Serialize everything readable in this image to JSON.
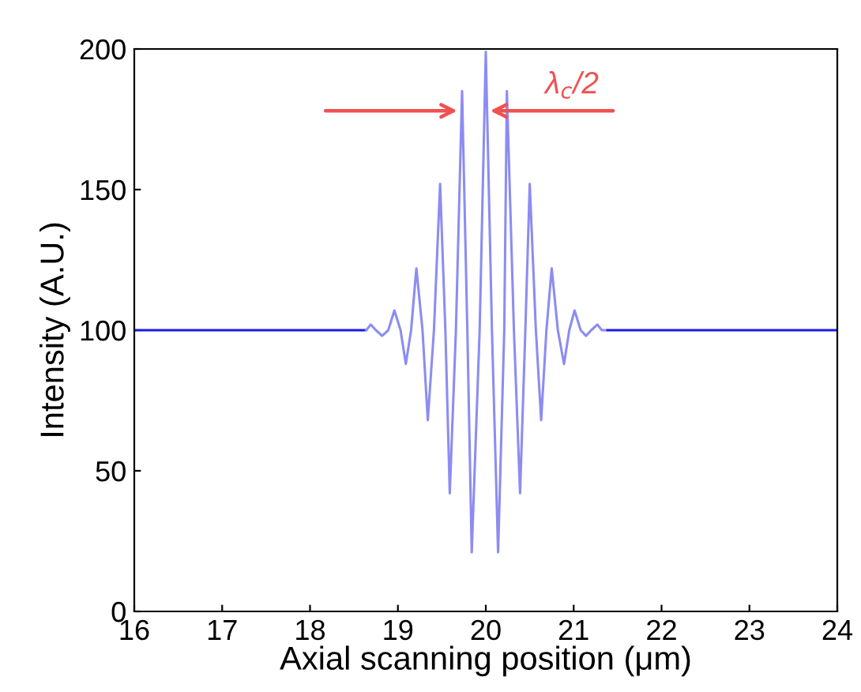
{
  "chart_data": {
    "type": "line",
    "xlabel": "Axial scanning position (μm)",
    "ylabel": "Intensity (A.U.)",
    "xlim": [
      16,
      24
    ],
    "ylim": [
      0,
      200
    ],
    "xticks": [
      16,
      17,
      18,
      19,
      20,
      21,
      22,
      23,
      24
    ],
    "yticks": [
      0,
      50,
      100,
      150,
      200
    ],
    "grid": false,
    "legend": false,
    "marker": "none",
    "line_style": "solid",
    "series": [
      {
        "color": "#1a1ae6",
        "x": [
          16,
          18.62,
          18.64,
          21.36,
          21.38,
          24
        ],
        "values": [
          100,
          100,
          null,
          null,
          100,
          100
        ]
      },
      {
        "color": "#8c8cf2",
        "x": [
          18.64,
          18.69,
          18.75,
          18.82,
          18.89,
          18.96,
          19.03,
          19.09,
          19.15,
          19.21,
          19.28,
          19.34,
          19.41,
          19.48,
          19.54,
          19.59,
          19.66,
          19.73,
          19.79,
          19.84,
          19.93,
          20.0,
          20.07,
          20.14,
          20.21,
          20.24,
          20.32,
          20.39,
          20.45,
          20.5,
          20.57,
          20.63,
          20.69,
          20.75,
          20.82,
          20.89,
          20.95,
          21.01,
          21.08,
          21.14,
          21.2,
          21.27,
          21.32,
          21.36
        ],
        "values": [
          100,
          102,
          100,
          98,
          100,
          107,
          100,
          88,
          100,
          122,
          100,
          68,
          100,
          152,
          100,
          42,
          100,
          185,
          100,
          21,
          100,
          199,
          100,
          21,
          100,
          185,
          100,
          42,
          100,
          152,
          100,
          68,
          100,
          122,
          100,
          88,
          100,
          107,
          100,
          98,
          100,
          102,
          100,
          100
        ]
      }
    ],
    "annotations": [
      {
        "text": "λ$_{c}$/2",
        "x": 20.0,
        "y": 178
      }
    ]
  }
}
